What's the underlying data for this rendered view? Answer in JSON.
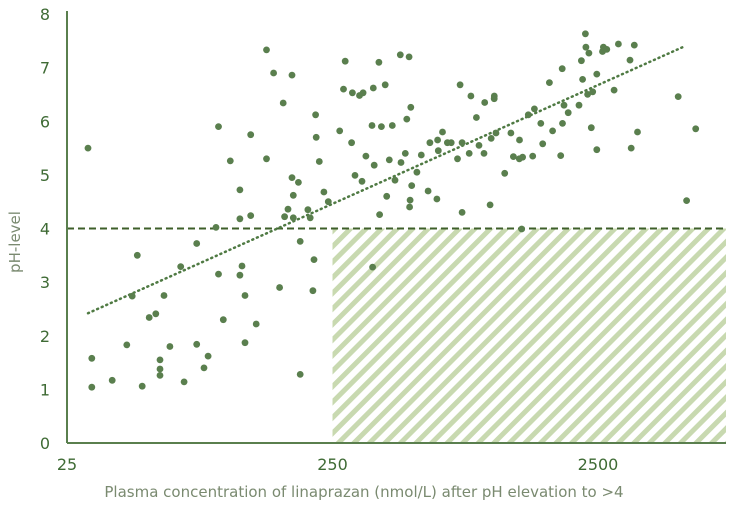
{
  "chart_data": {
    "type": "scatter",
    "title": "",
    "xlabel": "Plasma concentration of linaprazan (nmol/L) after pH elevation to >4",
    "ylabel": "pH-level",
    "x_scale": "log",
    "xlim": [
      25,
      7500
    ],
    "ylim": [
      0,
      8
    ],
    "x_ticks": [
      25,
      250,
      2500
    ],
    "x_tick_labels": [
      "25",
      "250",
      "2500"
    ],
    "y_ticks": [
      0,
      1,
      2,
      3,
      4,
      5,
      6,
      7,
      8
    ],
    "y_tick_labels": [
      "0",
      "1",
      "2",
      "3",
      "4",
      "5",
      "6",
      "7",
      "8"
    ],
    "grid": false,
    "legend": "none",
    "colors": {
      "points": "#5a7f4e",
      "trendline": "#4f7a43",
      "threshold": "#3e5f2a",
      "hatch": "#c8d9b0",
      "axes": "#5a7f4e",
      "tick_text": "#3f6b35",
      "axis_title": "#7a8a70"
    },
    "threshold_y": 4,
    "hatched_region": {
      "x_from": 250,
      "x_to": 7500,
      "y_from": 0,
      "y_to": 4
    },
    "trendline": {
      "x_start": 30,
      "y_start": 2.42,
      "x_end": 5200,
      "y_end": 7.38
    },
    "points": [
      [
        30,
        5.5
      ],
      [
        31,
        1.58
      ],
      [
        31,
        1.04
      ],
      [
        37,
        1.17
      ],
      [
        42,
        1.83
      ],
      [
        44,
        2.74
      ],
      [
        46,
        3.5
      ],
      [
        48,
        1.06
      ],
      [
        51,
        2.34
      ],
      [
        54,
        2.41
      ],
      [
        56,
        1.55
      ],
      [
        56,
        1.38
      ],
      [
        56,
        1.26
      ],
      [
        58,
        2.75
      ],
      [
        61,
        1.8
      ],
      [
        67,
        3.29
      ],
      [
        69,
        1.14
      ],
      [
        77,
        3.72
      ],
      [
        77,
        1.84
      ],
      [
        82,
        1.4
      ],
      [
        85,
        1.62
      ],
      [
        91,
        4.02
      ],
      [
        93,
        5.9
      ],
      [
        93,
        3.15
      ],
      [
        97,
        2.3
      ],
      [
        103,
        5.26
      ],
      [
        112,
        4.72
      ],
      [
        112,
        4.18
      ],
      [
        112,
        3.13
      ],
      [
        114,
        3.3
      ],
      [
        117,
        1.87
      ],
      [
        117,
        2.75
      ],
      [
        123,
        4.24
      ],
      [
        123,
        5.75
      ],
      [
        129,
        2.22
      ],
      [
        141,
        7.33
      ],
      [
        141,
        5.3
      ],
      [
        150,
        6.9
      ],
      [
        158,
        2.9
      ],
      [
        163,
        6.34
      ],
      [
        165,
        4.22
      ],
      [
        170,
        4.36
      ],
      [
        176,
        6.86
      ],
      [
        176,
        4.95
      ],
      [
        178,
        4.2
      ],
      [
        178,
        4.62
      ],
      [
        186,
        4.86
      ],
      [
        189,
        3.76
      ],
      [
        189,
        1.28
      ],
      [
        202,
        4.35
      ],
      [
        206,
        4.2
      ],
      [
        211,
        2.84
      ],
      [
        213,
        3.42
      ],
      [
        216,
        6.12
      ],
      [
        217,
        5.7
      ],
      [
        223,
        5.25
      ],
      [
        232,
        4.68
      ],
      [
        241,
        4.5
      ],
      [
        266,
        5.82
      ],
      [
        275,
        6.6
      ],
      [
        279,
        7.12
      ],
      [
        295,
        5.6
      ],
      [
        297,
        6.53
      ],
      [
        304,
        4.99
      ],
      [
        316,
        6.48
      ],
      [
        323,
        4.88
      ],
      [
        326,
        6.53
      ],
      [
        334,
        5.35
      ],
      [
        354,
        3.28
      ],
      [
        352,
        5.92
      ],
      [
        356,
        6.62
      ],
      [
        359,
        5.18
      ],
      [
        374,
        7.1
      ],
      [
        376,
        4.26
      ],
      [
        382,
        5.9
      ],
      [
        395,
        6.68
      ],
      [
        400,
        4.6
      ],
      [
        409,
        5.28
      ],
      [
        420,
        5.92
      ],
      [
        430,
        4.9
      ],
      [
        450,
        7.24
      ],
      [
        453,
        5.23
      ],
      [
        470,
        5.4
      ],
      [
        476,
        6.04
      ],
      [
        486,
        7.2
      ],
      [
        488,
        4.4
      ],
      [
        490,
        4.53
      ],
      [
        493,
        6.26
      ],
      [
        497,
        4.8
      ],
      [
        520,
        5.05
      ],
      [
        540,
        5.37
      ],
      [
        573,
        4.7
      ],
      [
        582,
        5.6
      ],
      [
        618,
        4.55
      ],
      [
        622,
        5.65
      ],
      [
        626,
        5.45
      ],
      [
        649,
        5.8
      ],
      [
        677,
        5.6
      ],
      [
        700,
        5.6
      ],
      [
        739,
        5.3
      ],
      [
        756,
        6.68
      ],
      [
        769,
        5.6
      ],
      [
        769,
        4.3
      ],
      [
        818,
        5.4
      ],
      [
        830,
        6.47
      ],
      [
        871,
        6.07
      ],
      [
        891,
        5.55
      ],
      [
        930,
        5.4
      ],
      [
        936,
        6.35
      ],
      [
        981,
        4.44
      ],
      [
        990,
        5.68
      ],
      [
        1016,
        6.42
      ],
      [
        1017,
        6.47
      ],
      [
        1032,
        5.78
      ],
      [
        1113,
        5.03
      ],
      [
        1175,
        5.78
      ],
      [
        1200,
        5.34
      ],
      [
        1263,
        5.3
      ],
      [
        1266,
        5.65
      ],
      [
        1290,
        3.99
      ],
      [
        1300,
        5.33
      ],
      [
        1366,
        6.12
      ],
      [
        1419,
        5.35
      ],
      [
        1440,
        6.23
      ],
      [
        1522,
        5.96
      ],
      [
        1547,
        5.58
      ],
      [
        1640,
        6.72
      ],
      [
        1686,
        5.82
      ],
      [
        1809,
        5.36
      ],
      [
        1832,
        6.98
      ],
      [
        1838,
        5.96
      ],
      [
        1861,
        6.3
      ],
      [
        1930,
        6.16
      ],
      [
        2120,
        6.3
      ],
      [
        2165,
        7.13
      ],
      [
        2188,
        6.78
      ],
      [
        2242,
        7.63
      ],
      [
        2251,
        7.38
      ],
      [
        2285,
        6.5
      ],
      [
        2310,
        7.27
      ],
      [
        2359,
        5.88
      ],
      [
        2388,
        6.55
      ],
      [
        2475,
        5.47
      ],
      [
        2475,
        6.88
      ],
      [
        2600,
        7.3
      ],
      [
        2619,
        7.38
      ],
      [
        2699,
        7.34
      ],
      [
        2875,
        6.58
      ],
      [
        2984,
        7.44
      ],
      [
        3300,
        7.14
      ],
      [
        3334,
        5.5
      ],
      [
        3424,
        7.42
      ],
      [
        3521,
        5.8
      ],
      [
        5010,
        6.46
      ],
      [
        5391,
        4.52
      ],
      [
        5835,
        5.86
      ]
    ]
  }
}
